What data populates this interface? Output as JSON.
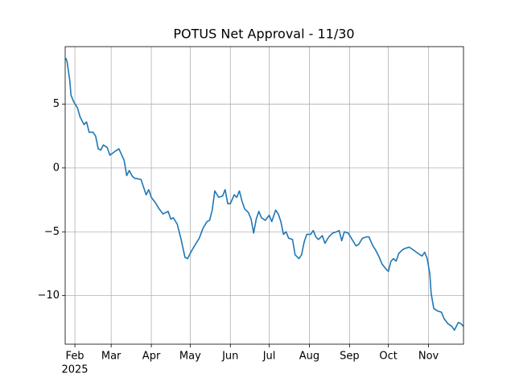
{
  "chart_data": {
    "type": "line",
    "title": "POTUS Net Approval - 11/30",
    "x_year": "2025",
    "x": [
      25,
      26,
      28,
      29,
      31,
      34,
      36,
      39,
      41,
      43,
      46,
      48,
      50,
      52,
      54,
      57,
      59,
      63,
      66,
      70,
      72,
      74,
      76,
      78,
      83,
      87,
      89,
      91,
      94,
      97,
      100,
      104,
      106,
      108,
      111,
      114,
      117,
      119,
      122,
      125,
      128,
      131,
      134,
      136,
      138,
      140,
      143,
      146,
      148,
      150,
      152,
      155,
      157,
      159,
      161,
      163,
      166,
      168,
      170,
      172,
      174,
      176,
      179,
      182,
      184,
      187,
      189,
      191,
      193,
      195,
      197,
      200,
      202,
      205,
      207,
      209,
      211,
      214,
      216,
      218,
      220,
      223,
      225,
      228,
      231,
      234,
      236,
      238,
      240,
      243,
      246,
      249,
      251,
      254,
      257,
      259,
      262,
      264,
      267,
      269,
      272,
      274,
      276,
      278,
      280,
      282,
      285,
      287,
      290,
      293,
      297,
      300,
      302,
      304,
      306,
      307,
      309,
      312,
      315,
      317,
      320,
      323,
      325,
      328,
      330,
      332
    ],
    "series": [
      {
        "color": "#1f77b4",
        "values": [
          8.6,
          8.3,
          6.9,
          5.7,
          5.2,
          4.7,
          4.0,
          3.4,
          3.6,
          2.8,
          2.8,
          2.5,
          1.5,
          1.4,
          1.8,
          1.6,
          1.0,
          1.3,
          1.5,
          0.6,
          -0.6,
          -0.2,
          -0.6,
          -0.8,
          -0.9,
          -2.1,
          -1.7,
          -2.3,
          -2.7,
          -3.2,
          -3.6,
          -3.4,
          -4.0,
          -3.9,
          -4.4,
          -5.6,
          -7.0,
          -7.1,
          -6.5,
          -6.0,
          -5.5,
          -4.7,
          -4.2,
          -4.1,
          -3.3,
          -1.8,
          -2.3,
          -2.2,
          -1.7,
          -2.8,
          -2.8,
          -2.1,
          -2.3,
          -1.8,
          -2.6,
          -3.2,
          -3.5,
          -4.0,
          -5.1,
          -4.0,
          -3.4,
          -3.9,
          -4.1,
          -3.7,
          -4.2,
          -3.3,
          -3.6,
          -4.2,
          -5.2,
          -5.0,
          -5.5,
          -5.6,
          -6.8,
          -7.1,
          -6.8,
          -5.8,
          -5.2,
          -5.2,
          -4.9,
          -5.4,
          -5.6,
          -5.3,
          -5.9,
          -5.4,
          -5.1,
          -5.0,
          -4.9,
          -5.7,
          -5.0,
          -5.1,
          -5.6,
          -6.1,
          -6.0,
          -5.5,
          -5.4,
          -5.4,
          -6.1,
          -6.4,
          -7.0,
          -7.5,
          -7.9,
          -8.1,
          -7.3,
          -7.1,
          -7.3,
          -6.7,
          -6.4,
          -6.3,
          -6.2,
          -6.4,
          -6.7,
          -6.9,
          -6.6,
          -7.1,
          -8.3,
          -9.8,
          -11.0,
          -11.2,
          -11.3,
          -11.8,
          -12.2,
          -12.4,
          -12.7,
          -12.1,
          -12.2,
          -12.4
        ]
      }
    ],
    "xlim": [
      24.5,
      332
    ],
    "xticks": [
      {
        "value": 32,
        "label": "Feb"
      },
      {
        "value": 60,
        "label": "Mar"
      },
      {
        "value": 91,
        "label": "Apr"
      },
      {
        "value": 121,
        "label": "May"
      },
      {
        "value": 152,
        "label": "Jun"
      },
      {
        "value": 182,
        "label": "Jul"
      },
      {
        "value": 213,
        "label": "Aug"
      },
      {
        "value": 244,
        "label": "Sep"
      },
      {
        "value": 274,
        "label": "Oct"
      },
      {
        "value": 305,
        "label": "Nov"
      }
    ],
    "ylim": [
      -13.8,
      9.5
    ],
    "yticks": [
      {
        "value": -10,
        "label": "−10"
      },
      {
        "value": -5,
        "label": "−5"
      },
      0,
      5
    ],
    "grid": true
  }
}
